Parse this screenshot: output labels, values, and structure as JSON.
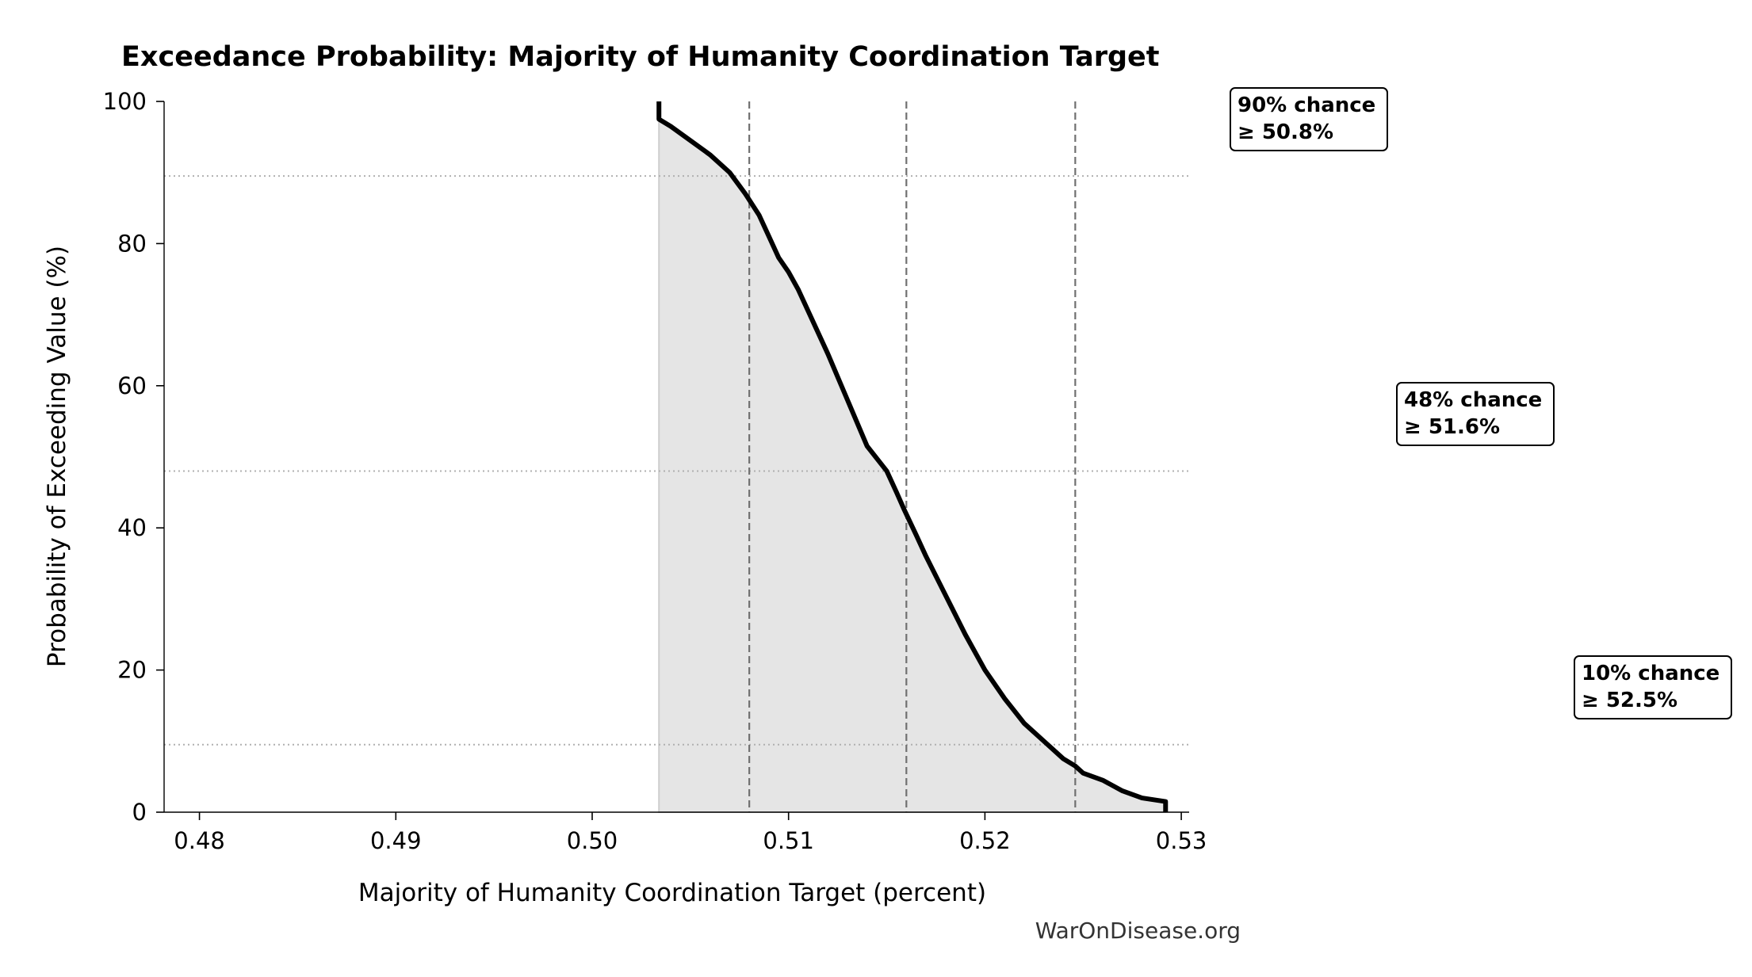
{
  "chart_data": {
    "type": "area",
    "title": "Exceedance Probability: Majority of Humanity Coordination Target",
    "xlabel": "Majority of Humanity Coordination Target (percent)",
    "ylabel": "Probability of Exceeding Value (%)",
    "xlim": [
      0.4782,
      0.5304
    ],
    "ylim": [
      0,
      100
    ],
    "xticks": [
      0.48,
      0.49,
      0.5,
      0.51,
      0.52,
      0.53
    ],
    "xtick_labels": [
      "0.48",
      "0.49",
      "0.50",
      "0.51",
      "0.52",
      "0.53"
    ],
    "yticks": [
      0,
      20,
      40,
      60,
      80,
      100
    ],
    "ytick_labels": [
      "0",
      "20",
      "40",
      "60",
      "80",
      "100"
    ],
    "grid": false,
    "series": [
      {
        "x": [
          0.5034,
          0.5034,
          0.504,
          0.505,
          0.506,
          0.507,
          0.5078,
          0.5085,
          0.509,
          0.5095,
          0.51,
          0.5105,
          0.511,
          0.512,
          0.513,
          0.514,
          0.515,
          0.5155,
          0.5159,
          0.5165,
          0.517,
          0.518,
          0.519,
          0.52,
          0.521,
          0.522,
          0.523,
          0.524,
          0.5246,
          0.525,
          0.526,
          0.527,
          0.528,
          0.5292,
          0.5292
        ],
        "y": [
          100,
          97.5,
          96.5,
          94.5,
          92.5,
          90.0,
          87.0,
          84.0,
          81.0,
          78.0,
          76.0,
          73.5,
          70.5,
          64.5,
          58.0,
          51.5,
          48.0,
          45.0,
          42.5,
          39.0,
          36.0,
          30.5,
          25.0,
          20.0,
          16.0,
          12.5,
          10.0,
          7.5,
          6.5,
          5.5,
          4.5,
          3.0,
          2.0,
          1.5,
          0
        ]
      }
    ],
    "threshold_lines": [
      {
        "x": 0.508,
        "y": 89.5
      },
      {
        "x": 0.516,
        "y": 48.0
      },
      {
        "x": 0.5246,
        "y": 9.5
      }
    ],
    "annotations": [
      {
        "line1": "90% chance",
        "line2": "≥ 50.8%"
      },
      {
        "line1": "48% chance",
        "line2": "≥ 51.6%"
      },
      {
        "line1": "10% chance",
        "line2": "≥ 52.5%"
      }
    ],
    "watermark": "WarOnDisease.org",
    "colors": {
      "line": "#000000",
      "fill": "#e5e5e5",
      "threshold": "#707070",
      "reference": "#b0b0b0"
    }
  }
}
